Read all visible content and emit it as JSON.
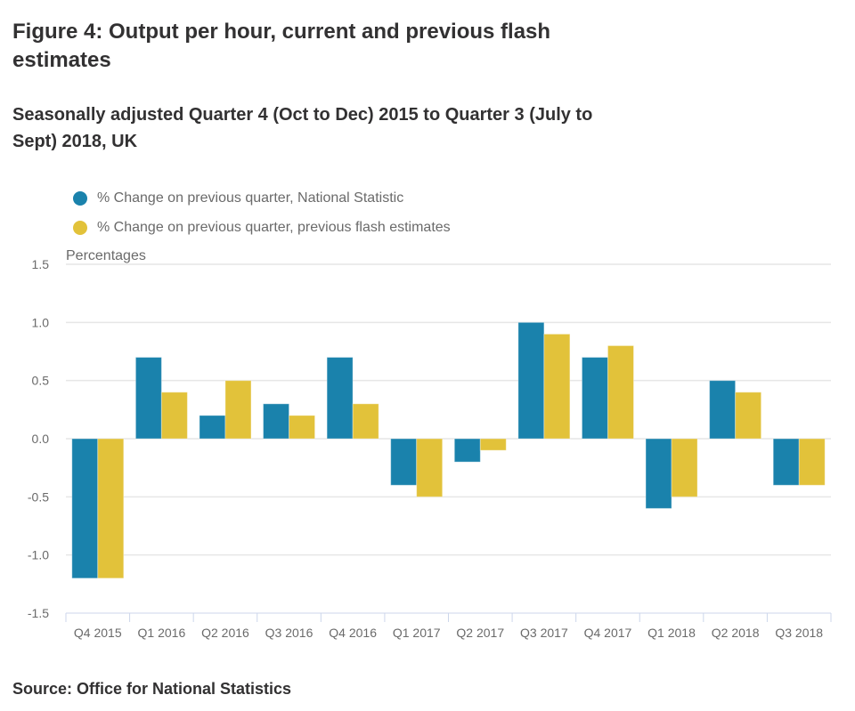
{
  "header": {
    "title": "Figure 4: Output per hour, current and previous flash estimates",
    "subtitle": "Seasonally adjusted Quarter 4 (Oct to Dec) 2015 to Quarter 3 (July to Sept) 2018, UK"
  },
  "legend": [
    {
      "label": "% Change on previous quarter, National Statistic",
      "color": "#1a82ac"
    },
    {
      "label": "% Change on previous quarter, previous flash estimates",
      "color": "#e2c23a"
    }
  ],
  "footer": {
    "source": "Source: Office for National Statistics"
  },
  "chart_data": {
    "type": "bar",
    "title": "Figure 4: Output per hour, current and previous flash estimates",
    "subtitle": "Seasonally adjusted Quarter 4 (Oct to Dec) 2015 to Quarter 3 (July to Sept) 2018, UK",
    "xlabel": "",
    "ylabel": "Percentages",
    "ylim": [
      -1.5,
      1.5
    ],
    "yticks": [
      1.5,
      1.0,
      0.5,
      0.0,
      -0.5,
      -1.0,
      -1.5
    ],
    "ytick_labels": [
      "1.5",
      "1.0",
      "0.5",
      "0.0",
      "-0.5",
      "-1.0",
      "-1.5"
    ],
    "grid": true,
    "legend_position": "top-left",
    "categories": [
      "Q4 2015",
      "Q1 2016",
      "Q2 2016",
      "Q3 2016",
      "Q4 2016",
      "Q1 2017",
      "Q2 2017",
      "Q3 2017",
      "Q4 2017",
      "Q1 2018",
      "Q2 2018",
      "Q3 2018"
    ],
    "series": [
      {
        "name": "% Change on previous quarter, National Statistic",
        "color": "#1a82ac",
        "values": [
          -1.2,
          0.7,
          0.2,
          0.3,
          0.7,
          -0.4,
          -0.2,
          1.0,
          0.7,
          -0.6,
          0.5,
          -0.4
        ]
      },
      {
        "name": "% Change on previous quarter, previous flash estimates",
        "color": "#e2c23a",
        "values": [
          -1.2,
          0.4,
          0.5,
          0.2,
          0.3,
          -0.5,
          -0.1,
          0.9,
          0.8,
          -0.5,
          0.4,
          -0.4
        ]
      }
    ],
    "source": "Source: Office for National Statistics"
  }
}
